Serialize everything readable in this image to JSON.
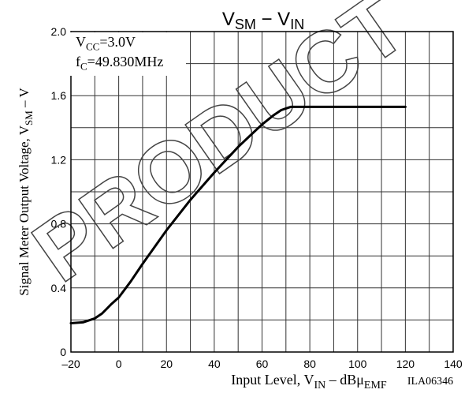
{
  "chart_data": {
    "type": "line",
    "title_main": "V",
    "title_sub1": "SM",
    "title_mid": " − V",
    "title_sub2": "IN",
    "xlabel_main": "Input Level, V",
    "xlabel_sub1": "IN",
    "xlabel_mid": " – dBμ",
    "xlabel_sub2": "EMF",
    "ylabel_main": "Signal Meter Output Voltage, V",
    "ylabel_sub": "SM",
    "ylabel_unit": " – V",
    "xlim": [
      -20,
      140
    ],
    "ylim": [
      0,
      2.0
    ],
    "x_ticks": [
      -20,
      0,
      20,
      40,
      60,
      80,
      100,
      120,
      140
    ],
    "x_tick_labels": [
      "–20",
      "0",
      "20",
      "40",
      "60",
      "80",
      "100",
      "120",
      "140"
    ],
    "y_ticks": [
      0,
      0.4,
      0.8,
      1.2,
      1.6,
      2.0
    ],
    "y_tick_labels": [
      "0",
      "0.4",
      "0.8",
      "1.2",
      "1.6",
      "2.0"
    ],
    "grid": true,
    "conditions": {
      "vcc_label": "V",
      "vcc_sub": "CC",
      "vcc_value": "=3.0V",
      "fc_label": "f",
      "fc_sub": "C",
      "fc_value": "=49.830MHz"
    },
    "figure_id": "ILA06346",
    "watermark": "PRODUCT",
    "series": [
      {
        "x": [
          -20,
          -15,
          -10,
          -7,
          -5,
          -3,
          0,
          5,
          10,
          20,
          30,
          40,
          50,
          55,
          60,
          65,
          68,
          70,
          72,
          75,
          80,
          90,
          100,
          110,
          120
        ],
        "y": [
          0.18,
          0.185,
          0.21,
          0.24,
          0.27,
          0.3,
          0.34,
          0.44,
          0.55,
          0.76,
          0.95,
          1.12,
          1.28,
          1.35,
          1.42,
          1.48,
          1.51,
          1.52,
          1.53,
          1.53,
          1.53,
          1.53,
          1.53,
          1.53,
          1.53
        ]
      }
    ]
  }
}
